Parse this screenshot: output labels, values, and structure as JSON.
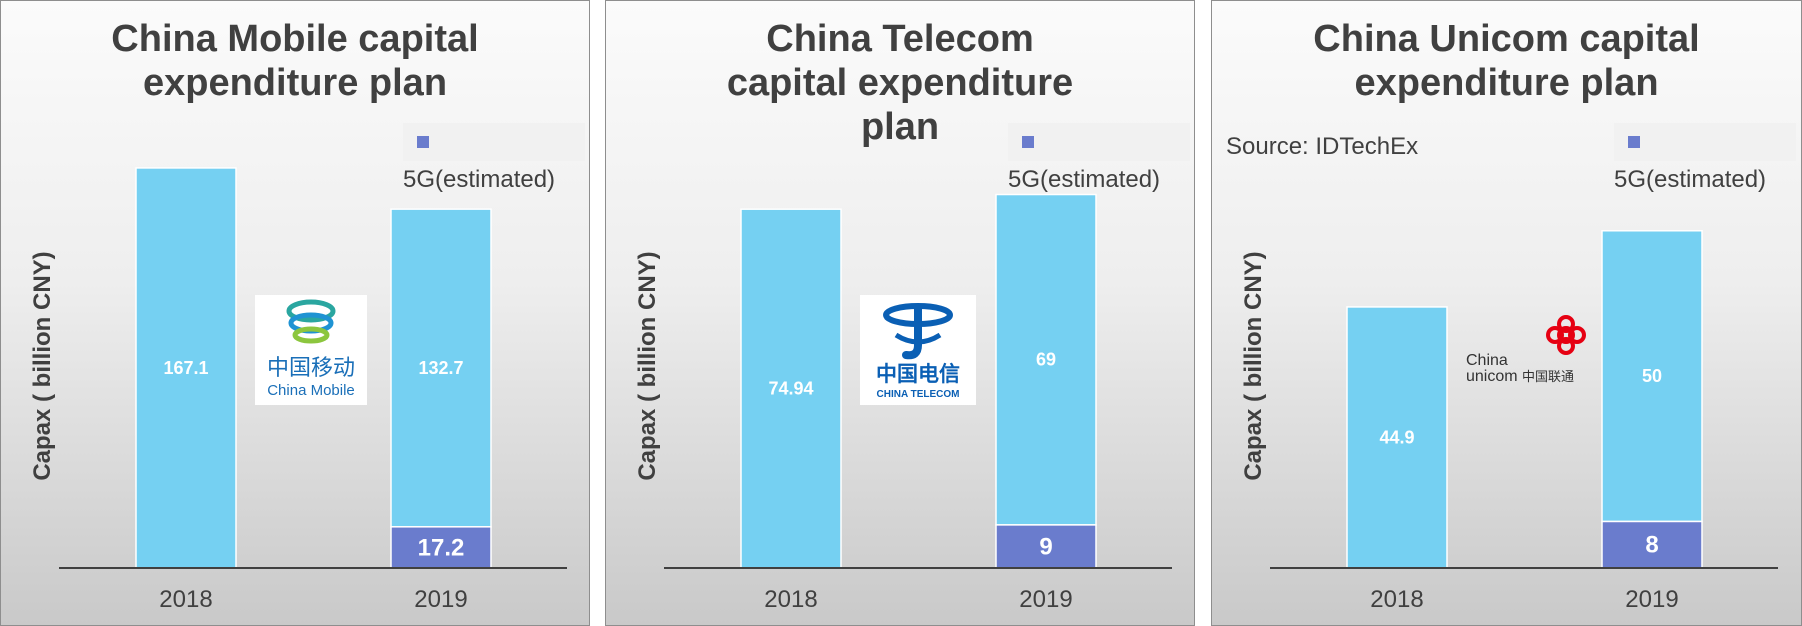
{
  "source_note": "Source: IDTechEx",
  "colors": {
    "total": "#75d0f2",
    "fiveg": "#6a7ccd",
    "label": "#ffffff",
    "text": "#404040"
  },
  "chart_data": [
    {
      "type": "bar",
      "title": "China Mobile capital expenditure plan",
      "ylabel": "Capax ( billion CNY)",
      "categories": [
        "2018",
        "2019"
      ],
      "legend": [
        "5G(estimated)"
      ],
      "legend_position": "top-right",
      "ylim": [
        0,
        170
      ],
      "series": [
        {
          "values": [
            167.1,
            132.7
          ],
          "labels": [
            "167.1",
            "132.7"
          ]
        },
        {
          "name": "5G(estimated)",
          "values": [
            0,
            17.2
          ],
          "labels": [
            "",
            "17.2"
          ]
        }
      ],
      "logo": {
        "icon": "china-mobile-logo",
        "cn": "中国移动",
        "en": "China Mobile"
      }
    },
    {
      "type": "bar",
      "title": "China Telecom capital expenditure plan",
      "ylabel": "Capax ( billion CNY)",
      "categories": [
        "2018",
        "2019"
      ],
      "legend": [
        "5G(estimated)"
      ],
      "legend_position": "top-right",
      "ylim": [
        0,
        85
      ],
      "series": [
        {
          "values": [
            74.94,
            69
          ],
          "labels": [
            "74.94",
            "69"
          ]
        },
        {
          "name": "5G(estimated)",
          "values": [
            0,
            9
          ],
          "labels": [
            "",
            "9"
          ]
        }
      ],
      "logo": {
        "icon": "china-telecom-logo",
        "cn": "中国电信",
        "en": "CHINA TELECOM"
      }
    },
    {
      "type": "bar",
      "title": "China Unicom capital expenditure plan",
      "ylabel": "Capax ( billion CNY)",
      "categories": [
        "2018",
        "2019"
      ],
      "legend": [
        "5G(estimated)"
      ],
      "legend_position": "top-right",
      "ylim": [
        0,
        70
      ],
      "series": [
        {
          "values": [
            44.9,
            50
          ],
          "labels": [
            "44.9",
            "50"
          ]
        },
        {
          "name": "5G(estimated)",
          "values": [
            0,
            8
          ],
          "labels": [
            "",
            "8"
          ]
        }
      ],
      "logo": {
        "icon": "china-unicom-logo",
        "en1": "China",
        "en2": "unicom",
        "cn": "中国联通"
      }
    }
  ]
}
